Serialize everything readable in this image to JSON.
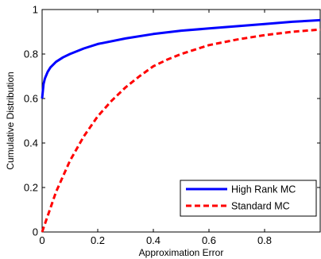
{
  "chart_data": {
    "type": "line",
    "xlabel": "Approximation Error",
    "ylabel": "Cumulative Distribution",
    "xlim": [
      0,
      1
    ],
    "ylim": [
      0,
      1
    ],
    "x_ticks": [
      "0",
      "0.2",
      "0.4",
      "0.6",
      "0.8"
    ],
    "y_ticks": [
      "0",
      "0.2",
      "0.4",
      "0.6",
      "0.8",
      "1"
    ],
    "grid": false,
    "legend_position": "bottom-right",
    "series": [
      {
        "name": "High Rank MC",
        "color": "#0000ff",
        "style": "solid",
        "x": [
          0,
          0.005,
          0.01,
          0.02,
          0.03,
          0.05,
          0.075,
          0.1,
          0.15,
          0.2,
          0.3,
          0.4,
          0.5,
          0.6,
          0.7,
          0.8,
          0.9,
          1.0
        ],
        "y": [
          0.6,
          0.665,
          0.69,
          0.72,
          0.74,
          0.765,
          0.785,
          0.8,
          0.825,
          0.845,
          0.87,
          0.89,
          0.905,
          0.915,
          0.925,
          0.935,
          0.945,
          0.952
        ]
      },
      {
        "name": "Standard MC",
        "color": "#ff0000",
        "style": "dashed",
        "x": [
          0,
          0.05,
          0.1,
          0.15,
          0.2,
          0.25,
          0.3,
          0.35,
          0.4,
          0.45,
          0.5,
          0.6,
          0.7,
          0.8,
          0.9,
          1.0
        ],
        "y": [
          0,
          0.18,
          0.32,
          0.43,
          0.52,
          0.59,
          0.65,
          0.7,
          0.745,
          0.775,
          0.8,
          0.84,
          0.865,
          0.885,
          0.9,
          0.91
        ]
      }
    ]
  }
}
